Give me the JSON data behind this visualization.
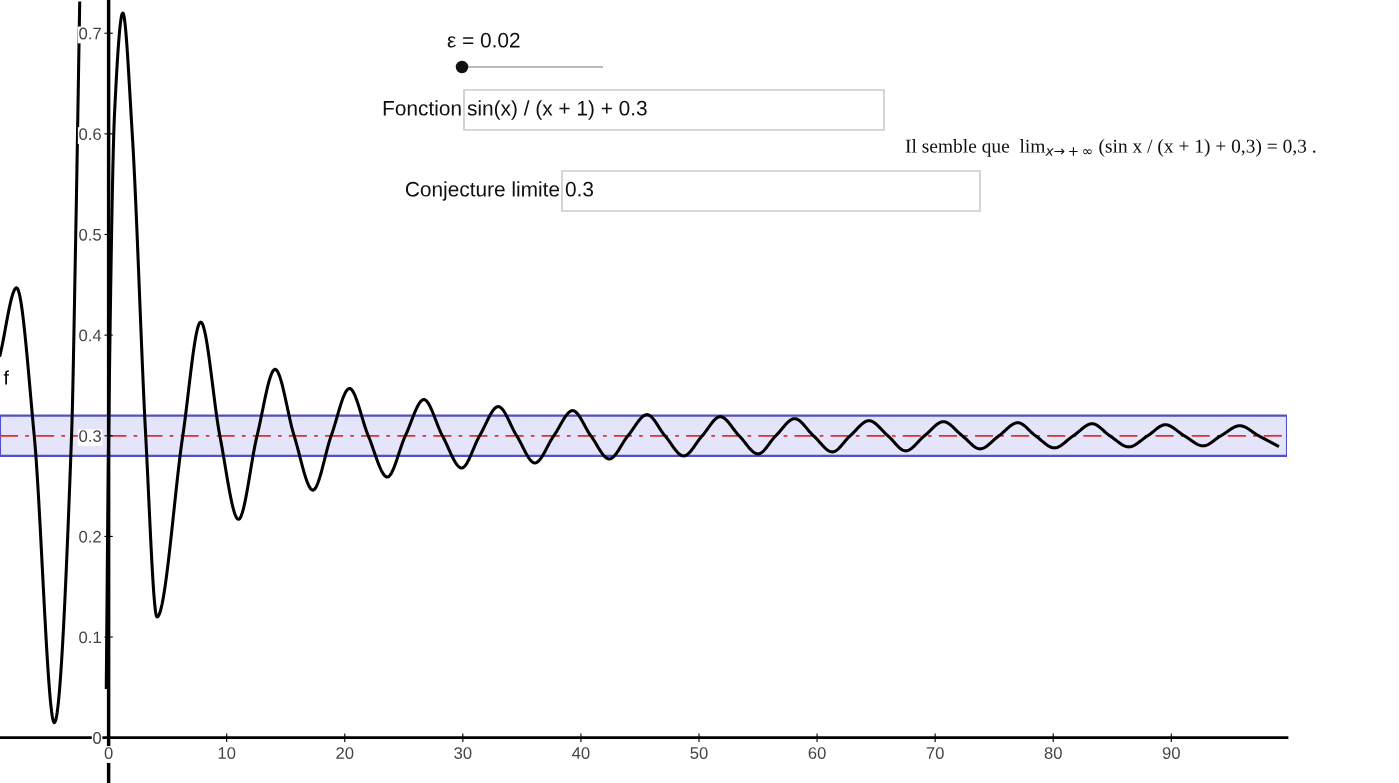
{
  "chart_data": {
    "type": "line",
    "xlim": [
      -9.2,
      99.8
    ],
    "ylim": [
      -0.045,
      0.733
    ],
    "xticks": [
      0,
      10,
      20,
      30,
      40,
      50,
      60,
      70,
      80,
      90
    ],
    "yticks": [
      0,
      0.1,
      0.2,
      0.3,
      0.4,
      0.5,
      0.6,
      0.7
    ],
    "series": [
      {
        "name": "f",
        "color": "#000000",
        "x": [
          -9.2,
          -7.8,
          -6.3,
          -4.6,
          -3.14,
          -2.8,
          -2.45,
          -1.0,
          -0.2,
          0,
          0.5,
          1.2,
          2,
          3.14,
          4.1,
          6.28,
          7.8,
          9.42,
          11.0,
          12.57,
          14.1,
          15.71,
          17.3,
          18.85,
          20.4,
          21.99,
          23.6,
          25.13,
          26.7,
          28.27,
          29.9,
          31.42,
          33.0,
          34.56,
          36.1,
          37.7,
          39.3,
          40.84,
          42.4,
          43.98,
          45.6,
          47.12,
          48.7,
          50.27,
          51.8,
          53.4,
          55.0,
          56.5,
          58.1,
          59.7,
          61.3,
          62.8,
          64.4,
          66.0,
          67.5,
          69.1,
          70.7,
          72.3,
          73.8,
          75.4,
          77.0,
          78.5,
          80.1,
          81.7,
          83.3,
          84.8,
          86.4,
          88.0,
          89.5,
          91.1,
          92.7,
          94.2,
          95.8,
          97.4,
          99.0
        ],
        "values": [
          0.38,
          0.447,
          0.3,
          0.015,
          0.3,
          0.49,
          0.73,
          null,
          0.05,
          0.3,
          0.62,
          0.72,
          0.6,
          0.3,
          0.12,
          0.3,
          0.413,
          0.3,
          0.217,
          0.3,
          0.366,
          0.3,
          0.246,
          0.3,
          0.347,
          0.3,
          0.259,
          0.3,
          0.336,
          0.3,
          0.268,
          0.3,
          0.329,
          0.3,
          0.273,
          0.3,
          0.325,
          0.3,
          0.277,
          0.3,
          0.321,
          0.3,
          0.28,
          0.3,
          0.319,
          0.3,
          0.282,
          0.3,
          0.317,
          0.3,
          0.284,
          0.3,
          0.315,
          0.3,
          0.285,
          0.3,
          0.314,
          0.3,
          0.287,
          0.3,
          0.313,
          0.3,
          0.288,
          0.3,
          0.312,
          0.3,
          0.289,
          0.3,
          0.311,
          0.3,
          0.29,
          0.3,
          0.31,
          0.3,
          0.29
        ]
      }
    ],
    "bands": [
      {
        "axis": "y",
        "from": 0.28,
        "to": 0.32,
        "color": "#e4e4fa"
      }
    ],
    "ref_lines": [
      {
        "axis": "y",
        "value": 0.3,
        "color": "#e03030",
        "line_style": "dashdot"
      }
    ],
    "annotations": [
      "ε = 0.02",
      "Fonction",
      "sin(x) / (x + 1) + 0.3",
      "Conjecture limite",
      "0.3",
      "Il semble que  lim$_{x→+∞}$ (sin x / (x + 1) + 0,3) = 0,3 ."
    ]
  }
}
